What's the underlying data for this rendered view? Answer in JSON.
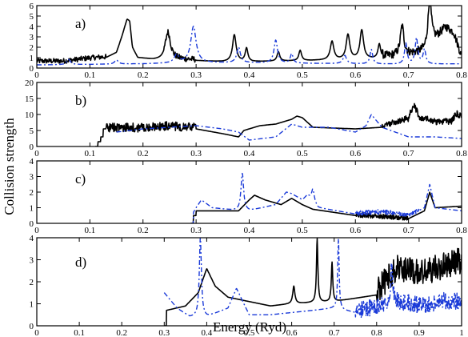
{
  "figure": {
    "ylabel": "Collision strength",
    "xlabel": "Energy (Ryd)"
  },
  "chart_data": [
    {
      "type": "line",
      "panel_label": "a)",
      "xlim": [
        0,
        0.8
      ],
      "ylim": [
        0,
        6
      ],
      "xticks": [
        0,
        0.1,
        0.2,
        0.3,
        0.4,
        0.5,
        0.6,
        0.7,
        0.8
      ],
      "yticks": [
        0,
        1,
        2,
        3,
        4,
        5,
        6
      ],
      "series": [
        {
          "color": "#000000",
          "dash": "solid",
          "threshold": 0.0,
          "base": [
            [
              0.0,
              0.6
            ],
            [
              0.05,
              0.6
            ],
            [
              0.1,
              0.9
            ],
            [
              0.13,
              1.0
            ],
            [
              0.15,
              1.5
            ],
            [
              0.16,
              3.0
            ],
            [
              0.17,
              4.7
            ],
            [
              0.175,
              4.5
            ],
            [
              0.18,
              2.0
            ],
            [
              0.19,
              1.0
            ],
            [
              0.22,
              0.8
            ],
            [
              0.3,
              0.7
            ],
            [
              0.35,
              0.6
            ],
            [
              0.4,
              0.6
            ],
            [
              0.5,
              0.7
            ],
            [
              0.6,
              0.8
            ],
            [
              0.65,
              0.9
            ],
            [
              0.7,
              1.2
            ],
            [
              0.73,
              1.5
            ],
            [
              0.75,
              2.6
            ],
            [
              0.77,
              3.8
            ],
            [
              0.785,
              3.3
            ],
            [
              0.8,
              1.0
            ]
          ],
          "peaks": [
            [
              0.247,
              2.6,
              0.006
            ],
            [
              0.372,
              2.6,
              0.004
            ],
            [
              0.395,
              1.3,
              0.003
            ],
            [
              0.455,
              0.9,
              0.003
            ],
            [
              0.496,
              1.0,
              0.003
            ],
            [
              0.556,
              1.8,
              0.004
            ],
            [
              0.586,
              2.4,
              0.004
            ],
            [
              0.612,
              2.8,
              0.004
            ],
            [
              0.645,
              1.4,
              0.003
            ],
            [
              0.688,
              2.8,
              0.004
            ],
            [
              0.74,
              4.4,
              0.004
            ]
          ],
          "noise": [
            [
              0.0,
              0.13,
              0.5
            ],
            [
              0.24,
              0.3,
              0.6
            ],
            [
              0.65,
              0.8,
              0.8
            ]
          ]
        },
        {
          "color": "#1a3ad8",
          "dash": "6,3,2,3",
          "threshold": 0.0,
          "base": [
            [
              0.0,
              0.3
            ],
            [
              0.1,
              0.35
            ],
            [
              0.2,
              0.4
            ],
            [
              0.3,
              0.5
            ],
            [
              0.4,
              0.5
            ],
            [
              0.6,
              0.4
            ],
            [
              0.7,
              0.35
            ],
            [
              0.8,
              0.4
            ]
          ],
          "peaks": [
            [
              0.06,
              0.5,
              0.004
            ],
            [
              0.15,
              0.4,
              0.004
            ],
            [
              0.263,
              0.8,
              0.005
            ],
            [
              0.295,
              3.5,
              0.006
            ],
            [
              0.38,
              1.5,
              0.004
            ],
            [
              0.45,
              2.2,
              0.004
            ],
            [
              0.48,
              0.9,
              0.003
            ],
            [
              0.58,
              0.8,
              0.004
            ],
            [
              0.63,
              1.4,
              0.003
            ],
            [
              0.695,
              2.0,
              0.003
            ],
            [
              0.715,
              2.5,
              0.003
            ],
            [
              0.73,
              1.4,
              0.003
            ]
          ],
          "noise": []
        }
      ]
    },
    {
      "type": "line",
      "panel_label": "b)",
      "xlim": [
        0,
        0.8
      ],
      "ylim": [
        0,
        20
      ],
      "xticks": [
        0,
        0.1,
        0.2,
        0.3,
        0.4,
        0.5,
        0.6,
        0.7,
        0.8
      ],
      "yticks": [
        0,
        5,
        10,
        15,
        20
      ],
      "series": [
        {
          "color": "#000000",
          "dash": "solid",
          "threshold": 0.11,
          "base": [
            [
              0.11,
              0.0
            ],
            [
              0.115,
              0.0
            ],
            [
              0.115,
              1.5
            ],
            [
              0.12,
              1.5
            ],
            [
              0.12,
              3.0
            ],
            [
              0.125,
              3.0
            ],
            [
              0.125,
              5.5
            ],
            [
              0.2,
              5.5
            ],
            [
              0.25,
              6.0
            ],
            [
              0.3,
              5.5
            ],
            [
              0.35,
              4.0
            ],
            [
              0.38,
              3.0
            ],
            [
              0.39,
              5.0
            ],
            [
              0.42,
              6.5
            ],
            [
              0.45,
              7.0
            ],
            [
              0.48,
              8.5
            ],
            [
              0.49,
              9.5
            ],
            [
              0.5,
              9.0
            ],
            [
              0.52,
              6.0
            ],
            [
              0.6,
              5.5
            ],
            [
              0.65,
              6.0
            ],
            [
              0.7,
              8.5
            ],
            [
              0.71,
              13.0
            ],
            [
              0.72,
              9.0
            ],
            [
              0.75,
              7.5
            ],
            [
              0.78,
              7.5
            ],
            [
              0.79,
              10.0
            ],
            [
              0.8,
              9.0
            ]
          ],
          "peaks": [],
          "noise": [
            [
              0.13,
              0.3,
              2.8
            ],
            [
              0.65,
              0.8,
              2.0
            ]
          ]
        },
        {
          "color": "#1a3ad8",
          "dash": "6,3,2,3",
          "threshold": 0.15,
          "base": [
            [
              0.15,
              4.5
            ],
            [
              0.2,
              5.5
            ],
            [
              0.3,
              6.5
            ],
            [
              0.35,
              5.5
            ],
            [
              0.38,
              4.5
            ],
            [
              0.4,
              2.0
            ],
            [
              0.45,
              3.0
            ],
            [
              0.48,
              7.0
            ],
            [
              0.5,
              6.0
            ],
            [
              0.55,
              6.0
            ],
            [
              0.6,
              4.5
            ],
            [
              0.62,
              6.5
            ],
            [
              0.63,
              10.0
            ],
            [
              0.65,
              6.0
            ],
            [
              0.7,
              3.0
            ],
            [
              0.75,
              3.0
            ],
            [
              0.8,
              2.5
            ]
          ],
          "peaks": [],
          "noise": []
        }
      ]
    },
    {
      "type": "line",
      "panel_label": "c)",
      "xlim": [
        0,
        0.8
      ],
      "ylim": [
        0,
        4
      ],
      "xticks": [
        0,
        0.1,
        0.2,
        0.3,
        0.4,
        0.5,
        0.6,
        0.7,
        0.8
      ],
      "yticks": [
        0,
        1,
        2,
        3,
        4
      ],
      "series": [
        {
          "color": "#000000",
          "dash": "solid",
          "threshold": 0.29,
          "base": [
            [
              0.29,
              0.0
            ],
            [
              0.295,
              0.0
            ],
            [
              0.295,
              0.5
            ],
            [
              0.3,
              0.5
            ],
            [
              0.3,
              0.8
            ],
            [
              0.38,
              0.8
            ],
            [
              0.4,
              1.5
            ],
            [
              0.41,
              1.8
            ],
            [
              0.43,
              1.5
            ],
            [
              0.46,
              1.2
            ],
            [
              0.48,
              1.6
            ],
            [
              0.5,
              1.2
            ],
            [
              0.52,
              0.9
            ],
            [
              0.6,
              0.5
            ],
            [
              0.7,
              0.3
            ],
            [
              0.73,
              0.8
            ],
            [
              0.74,
              2.0
            ],
            [
              0.75,
              1.0
            ],
            [
              0.8,
              1.1
            ]
          ],
          "peaks": [],
          "noise": [
            [
              0.6,
              0.7,
              0.3
            ]
          ]
        },
        {
          "color": "#1a3ad8",
          "dash": "6,3,2,3",
          "threshold": 0.29,
          "base": [
            [
              0.29,
              0.0
            ],
            [
              0.295,
              0.0
            ],
            [
              0.295,
              0.7
            ],
            [
              0.3,
              1.0
            ],
            [
              0.31,
              1.5
            ],
            [
              0.33,
              1.0
            ],
            [
              0.38,
              0.8
            ],
            [
              0.4,
              0.8
            ],
            [
              0.45,
              1.2
            ],
            [
              0.47,
              2.0
            ],
            [
              0.48,
              1.9
            ],
            [
              0.5,
              1.5
            ],
            [
              0.51,
              1.8
            ],
            [
              0.53,
              1.0
            ],
            [
              0.6,
              0.6
            ],
            [
              0.65,
              0.7
            ],
            [
              0.7,
              0.5
            ],
            [
              0.73,
              1.0
            ],
            [
              0.74,
              2.5
            ],
            [
              0.75,
              1.0
            ],
            [
              0.8,
              0.8
            ]
          ],
          "peaks": [
            [
              0.387,
              2.4,
              0.003
            ],
            [
              0.52,
              0.8,
              0.003
            ]
          ],
          "noise": [
            [
              0.6,
              0.72,
              0.3
            ]
          ]
        }
      ]
    },
    {
      "type": "line",
      "panel_label": "d)",
      "xlim": [
        0,
        1
      ],
      "ylim": [
        0,
        4
      ],
      "xticks": [
        0,
        0.1,
        0.2,
        0.3,
        0.4,
        0.5,
        0.6,
        0.7,
        0.8,
        0.9,
        1
      ],
      "yticks": [
        0,
        1,
        2,
        3,
        4
      ],
      "series": [
        {
          "color": "#000000",
          "dash": "solid",
          "threshold": 0.3,
          "base": [
            [
              0.3,
              0.0
            ],
            [
              0.305,
              0.0
            ],
            [
              0.305,
              0.7
            ],
            [
              0.35,
              0.9
            ],
            [
              0.38,
              1.5
            ],
            [
              0.4,
              2.6
            ],
            [
              0.42,
              1.8
            ],
            [
              0.45,
              1.3
            ],
            [
              0.5,
              1.1
            ],
            [
              0.55,
              0.9
            ],
            [
              0.6,
              1.0
            ],
            [
              0.7,
              1.1
            ],
            [
              0.8,
              1.4
            ],
            [
              0.85,
              2.5
            ],
            [
              0.9,
              2.2
            ],
            [
              0.95,
              2.5
            ],
            [
              1.0,
              2.8
            ]
          ],
          "peaks": [
            [
              0.605,
              0.8,
              0.003
            ],
            [
              0.66,
              2.9,
              0.002
            ],
            [
              0.695,
              1.8,
              0.002
            ]
          ],
          "noise": [
            [
              0.8,
              1.0,
              1.2
            ]
          ]
        },
        {
          "color": "#1a3ad8",
          "dash": "6,3,2,3",
          "threshold": 0.3,
          "base": [
            [
              0.3,
              1.5
            ],
            [
              0.33,
              0.8
            ],
            [
              0.36,
              0.4
            ],
            [
              0.4,
              0.4
            ],
            [
              0.45,
              0.8
            ],
            [
              0.47,
              1.7
            ],
            [
              0.5,
              0.5
            ],
            [
              0.55,
              0.5
            ],
            [
              0.6,
              0.6
            ],
            [
              0.65,
              0.7
            ],
            [
              0.7,
              0.8
            ],
            [
              0.75,
              0.6
            ],
            [
              0.8,
              0.7
            ],
            [
              0.85,
              1.0
            ],
            [
              0.9,
              0.8
            ],
            [
              0.95,
              1.0
            ],
            [
              1.0,
              1.0
            ]
          ],
          "peaks": [
            [
              0.385,
              3.6,
              0.003
            ],
            [
              0.71,
              3.2,
              0.002
            ],
            [
              0.835,
              1.5,
              0.003
            ]
          ],
          "noise": [
            [
              0.75,
              1.0,
              0.8
            ]
          ]
        }
      ]
    }
  ]
}
